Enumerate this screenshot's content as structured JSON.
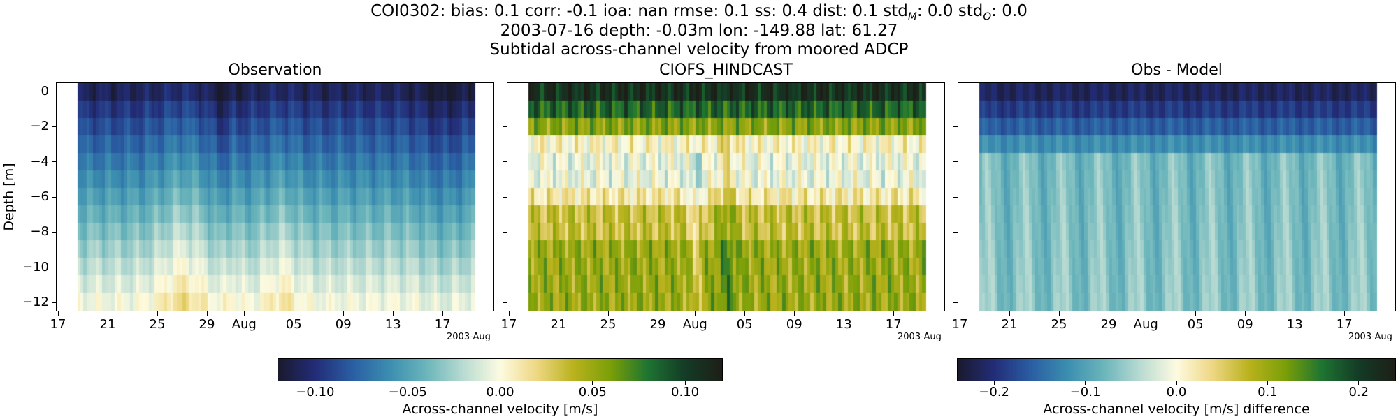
{
  "header": {
    "line1": "COI0302: bias: 0.1  corr: -0.1  ioa: nan  rmse: 0.1  ss: 0.4  dist: 0.1  std",
    "line1_sub_m": "M",
    "line1_mid": ": 0.0  std",
    "line1_sub_o": "O",
    "line1_end": ": 0.0",
    "line2": "2003-07-16 depth: -0.03m lon: -149.88 lat: 61.27",
    "line3": "Subtidal across-channel velocity from moored ADCP"
  },
  "colors": {
    "cmap_delta": [
      "#191a2e",
      "#232d78",
      "#2a5ea3",
      "#3b8eb0",
      "#6bb5bb",
      "#b9dbd2",
      "#fdfbe1",
      "#eed782",
      "#b9b21d",
      "#7a9f08",
      "#1e7432",
      "#143c26",
      "#1d1f17"
    ]
  },
  "chart_data": [
    {
      "type": "heatmap",
      "title": "Observation",
      "ylabel": "Depth [m]",
      "x_start": "2003-07-17",
      "x_end": "2003-08-18",
      "y_depths": [
        0,
        -1,
        -2,
        -3,
        -4,
        -5,
        -6,
        -7,
        -8,
        -9,
        -10,
        -11,
        -12
      ],
      "yticks": [
        0,
        -2,
        -4,
        -6,
        -8,
        -10,
        -12
      ],
      "ylim": [
        -12.5,
        0.5
      ],
      "xticks": [
        "17",
        "21",
        "25",
        "29",
        "Aug",
        "05",
        "09",
        "13",
        "17"
      ],
      "x_offset_label": "2003-Aug",
      "clim": [
        -0.12,
        0.12
      ],
      "values_summary": "Mostly negative: about -0.10 near surface rising to about 0.0 near the bottom, with bottom maxima around 0.01 near 25 Jul and 02 Aug"
    },
    {
      "type": "heatmap",
      "title": "CIOFS_HINDCAST",
      "x_start": "2003-07-17",
      "x_end": "2003-08-18",
      "y_depths": [
        0,
        -1,
        -2,
        -3,
        -4,
        -5,
        -6,
        -7,
        -8,
        -9,
        -10,
        -11,
        -12
      ],
      "yticks": [
        0,
        -2,
        -4,
        -6,
        -8,
        -10,
        -12
      ],
      "ylim": [
        -12.5,
        0.5
      ],
      "xticks": [
        "17",
        "21",
        "25",
        "29",
        "Aug",
        "05",
        "09",
        "13",
        "17"
      ],
      "x_offset_label": "2003-Aug",
      "clim": [
        -0.12,
        0.12
      ],
      "values_summary": "Mostly positive: about 0.11 near surface, near 0.0 between -3 and -6 m, about 0.04 to 0.07 near the bottom"
    },
    {
      "type": "heatmap",
      "title": "Obs - Model",
      "x_start": "2003-07-17",
      "x_end": "2003-08-18",
      "y_depths": [
        0,
        -1,
        -2,
        -3,
        -4,
        -5,
        -6,
        -7,
        -8,
        -9,
        -10,
        -11,
        -12
      ],
      "yticks": [
        0,
        -2,
        -4,
        -6,
        -8,
        -10,
        -12
      ],
      "ylim": [
        -12.5,
        0.5
      ],
      "xticks": [
        "17",
        "21",
        "25",
        "29",
        "Aug",
        "05",
        "09",
        "13",
        "17"
      ],
      "x_offset_label": "2003-Aug",
      "clim": [
        -0.24,
        0.24
      ],
      "values_summary": "Negative: about -0.21 near surface, about -0.08 to -0.03 at depth"
    },
    {
      "type": "colorbar",
      "label": "Across-channel velocity [m/s]",
      "range": [
        -0.12,
        0.12
      ],
      "ticks": [
        -0.1,
        -0.05,
        0.0,
        0.05,
        0.1
      ],
      "tick_labels": [
        "−0.10",
        "−0.05",
        "0.00",
        "0.05",
        "0.10"
      ]
    },
    {
      "type": "colorbar",
      "label": "Across-channel velocity [m/s] difference",
      "range": [
        -0.24,
        0.24
      ],
      "ticks": [
        -0.2,
        -0.1,
        0.0,
        0.1,
        0.2
      ],
      "tick_labels": [
        "−0.2",
        "−0.1",
        "0.0",
        "0.1",
        "0.2"
      ]
    }
  ]
}
